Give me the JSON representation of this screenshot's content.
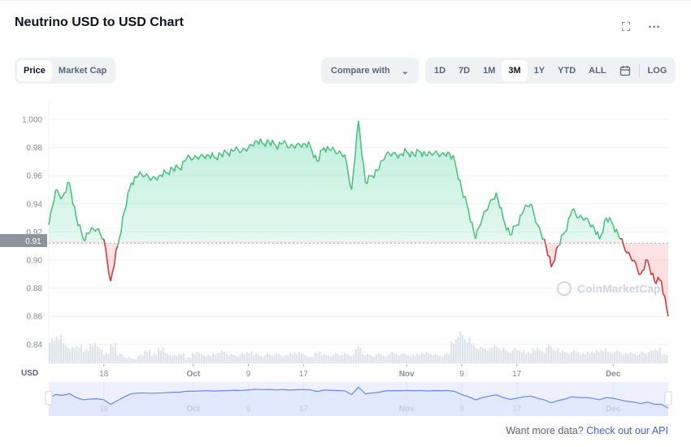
{
  "title": "Neutrino USD to USD Chart",
  "header_icons": [
    "fullscreen-icon",
    "more-icon"
  ],
  "type_tabs": [
    {
      "label": "Price",
      "active": true
    },
    {
      "label": "Market Cap",
      "active": false
    }
  ],
  "compare": {
    "label": "Compare with"
  },
  "ranges": [
    {
      "label": "1D"
    },
    {
      "label": "7D"
    },
    {
      "label": "1M"
    },
    {
      "label": "3M",
      "active": true
    },
    {
      "label": "1Y"
    },
    {
      "label": "YTD"
    },
    {
      "label": "ALL"
    }
  ],
  "log_label": "LOG",
  "currency_label": "USD",
  "current_price_label": "0.91",
  "watermark": "CoinMarketCap",
  "colors": {
    "up": "#16c784",
    "down": "#ea3943",
    "line_up": "#4fc27f",
    "line_down": "#d93a3a",
    "nav": "#6188ff"
  },
  "chart_data": {
    "type": "line",
    "title": "Neutrino USD to USD Chart",
    "ylabel": "USD",
    "ylim": [
      0.83,
      1.005
    ],
    "yticks": [
      "1.000",
      "0.98",
      "0.96",
      "0.94",
      "0.92",
      "0.90",
      "0.88",
      "0.86",
      "0.84"
    ],
    "xticks": [
      {
        "label": "18",
        "day": 8,
        "bold": false
      },
      {
        "label": "Oct",
        "day": 21,
        "bold": true
      },
      {
        "label": "9",
        "day": 29,
        "bold": false
      },
      {
        "label": "17",
        "day": 37,
        "bold": false
      },
      {
        "label": "Nov",
        "day": 52,
        "bold": true
      },
      {
        "label": "9",
        "day": 60,
        "bold": false
      },
      {
        "label": "17",
        "day": 68,
        "bold": false
      },
      {
        "label": "Dec",
        "day": 82,
        "bold": true
      }
    ],
    "baseline": 0.912,
    "prices": [
      0.925,
      0.95,
      0.945,
      0.955,
      0.93,
      0.915,
      0.92,
      0.922,
      0.915,
      0.885,
      0.91,
      0.935,
      0.955,
      0.96,
      0.96,
      0.958,
      0.96,
      0.962,
      0.965,
      0.965,
      0.972,
      0.972,
      0.974,
      0.975,
      0.973,
      0.975,
      0.976,
      0.978,
      0.977,
      0.98,
      0.985,
      0.983,
      0.984,
      0.981,
      0.983,
      0.98,
      0.982,
      0.983,
      0.981,
      0.97,
      0.98,
      0.978,
      0.976,
      0.975,
      0.95,
      0.999,
      0.955,
      0.96,
      0.965,
      0.975,
      0.976,
      0.975,
      0.977,
      0.975,
      0.977,
      0.974,
      0.976,
      0.975,
      0.977,
      0.97,
      0.95,
      0.935,
      0.915,
      0.93,
      0.94,
      0.948,
      0.93,
      0.918,
      0.925,
      0.935,
      0.94,
      0.925,
      0.915,
      0.895,
      0.91,
      0.92,
      0.935,
      0.93,
      0.93,
      0.925,
      0.915,
      0.93,
      0.925,
      0.915,
      0.905,
      0.9,
      0.89,
      0.9,
      0.885,
      0.885,
      0.86
    ],
    "volume": [
      0.8,
      0.9,
      0.6,
      0.5,
      0.55,
      0.45,
      0.65,
      0.5,
      0.3,
      0.6,
      0.3,
      0.2,
      0.15,
      0.25,
      0.4,
      0.3,
      0.5,
      0.3,
      0.25,
      0.3,
      0.2,
      0.35,
      0.3,
      0.25,
      0.3,
      0.4,
      0.3,
      0.25,
      0.3,
      0.35,
      0.3,
      0.25,
      0.3,
      0.3,
      0.25,
      0.3,
      0.35,
      0.3,
      0.2,
      0.35,
      0.3,
      0.25,
      0.3,
      0.3,
      0.25,
      0.55,
      0.3,
      0.25,
      0.3,
      0.25,
      0.35,
      0.3,
      0.3,
      0.25,
      0.3,
      0.35,
      0.3,
      0.25,
      0.3,
      0.7,
      1.0,
      0.8,
      0.6,
      0.5,
      0.45,
      0.6,
      0.5,
      0.4,
      0.45,
      0.4,
      0.35,
      0.5,
      0.4,
      0.55,
      0.45,
      0.4,
      0.35,
      0.4,
      0.3,
      0.35,
      0.4,
      0.45,
      0.35,
      0.4,
      0.3,
      0.35,
      0.3,
      0.35,
      0.4,
      0.45,
      0.3
    ]
  },
  "footer": {
    "text": "Want more data?",
    "link": "Check out our API"
  }
}
